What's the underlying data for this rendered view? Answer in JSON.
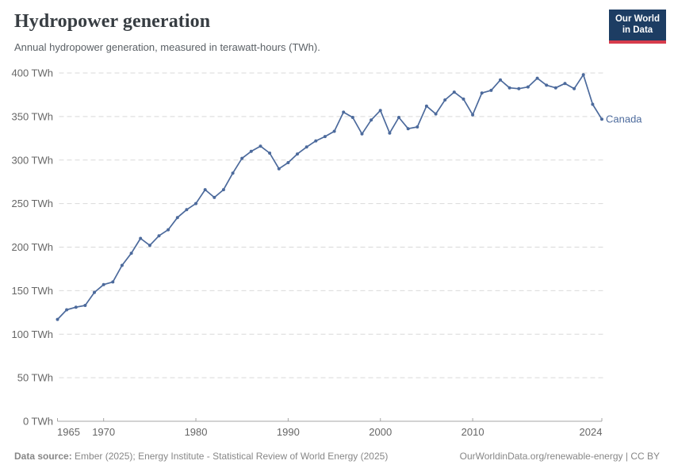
{
  "header": {
    "title": "Hydropower generation",
    "subtitle": "Annual hydropower generation, measured in terawatt-hours (TWh).",
    "logo": {
      "line1": "Our World",
      "line2": "in Data"
    }
  },
  "chart_data": {
    "type": "line",
    "title": "Hydropower generation",
    "xlabel": "",
    "ylabel": "TWh",
    "x_range": [
      1965,
      2024
    ],
    "ylim": [
      0,
      400
    ],
    "yticks": [
      0,
      50,
      100,
      150,
      200,
      250,
      300,
      350,
      400
    ],
    "ytick_format": "{v} TWh",
    "xticks": [
      1965,
      1970,
      1980,
      1990,
      2000,
      2010,
      2024
    ],
    "grid": "horizontal-dashed",
    "legend_position": "end-of-line",
    "series": [
      {
        "name": "Canada",
        "color": "#4C6A9C",
        "x_start": 1965,
        "values": [
          117,
          128,
          131,
          133,
          148,
          157,
          160,
          179,
          193,
          210,
          202,
          213,
          220,
          234,
          243,
          250,
          266,
          257,
          266,
          285,
          302,
          310,
          316,
          308,
          290,
          297,
          307,
          315,
          322,
          327,
          333,
          355,
          349,
          330,
          346,
          357,
          331,
          349,
          336,
          338,
          362,
          353,
          369,
          378,
          370,
          352,
          377,
          380,
          392,
          383,
          382,
          384,
          394,
          386,
          383,
          388,
          382,
          398,
          364,
          347
        ]
      }
    ]
  },
  "footer": {
    "data_source_label": "Data source:",
    "data_source_value": " Ember (2025); Energy Institute - Statistical Review of World Energy (2025)",
    "link": "OurWorldinData.org/renewable-energy",
    "separator": " | ",
    "license": "CC BY"
  },
  "colors": {
    "line": "#4C6A9C",
    "grid": "#d9d9d9",
    "axis": "#a5a5a5",
    "tick_text": "#666666",
    "logo_bg": "#1d3d63",
    "logo_accent": "#d73c4c"
  }
}
